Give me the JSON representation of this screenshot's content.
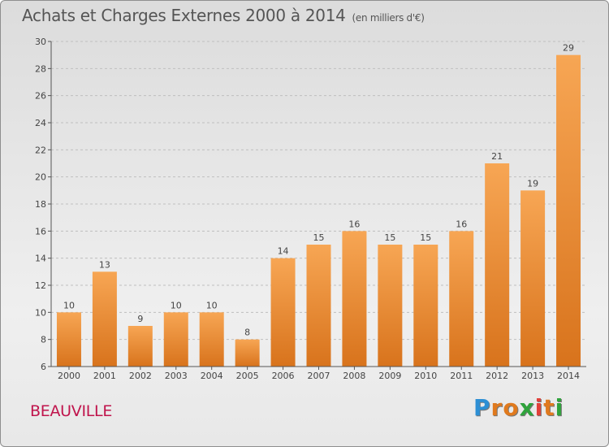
{
  "header": {
    "title": "Achats et Charges Externes 2000 à 2014",
    "subtitle": "(en milliers d'€)"
  },
  "footer": {
    "place": "BEAUVILLE",
    "brand_letters": [
      "P",
      "r",
      "o",
      "x",
      "i",
      "t",
      "i"
    ],
    "brand_colors": [
      "#2d8fd4",
      "#e07a1e",
      "#e07a1e",
      "#2fa33c",
      "#e0403a",
      "#e07a1e",
      "#2fa33c"
    ]
  },
  "colors": {
    "bar_top": "#f7a654",
    "bar_bottom": "#d8731c",
    "axis": "#555555",
    "grid": "#bfbfbf"
  },
  "chart_data": {
    "type": "bar",
    "title": "Achats et Charges Externes 2000 à 2014",
    "subtitle": "(en milliers d'€)",
    "xlabel": "",
    "ylabel": "",
    "categories": [
      "2000",
      "2001",
      "2002",
      "2003",
      "2004",
      "2005",
      "2006",
      "2007",
      "2008",
      "2009",
      "2010",
      "2011",
      "2012",
      "2013",
      "2014"
    ],
    "values": [
      10,
      13,
      9,
      10,
      10,
      8,
      14,
      15,
      16,
      15,
      15,
      16,
      21,
      19,
      29
    ],
    "ylim": [
      6,
      30
    ],
    "yticks": [
      6,
      8,
      10,
      12,
      14,
      16,
      18,
      20,
      22,
      24,
      26,
      28,
      30
    ],
    "grid": true,
    "legend": "none"
  }
}
